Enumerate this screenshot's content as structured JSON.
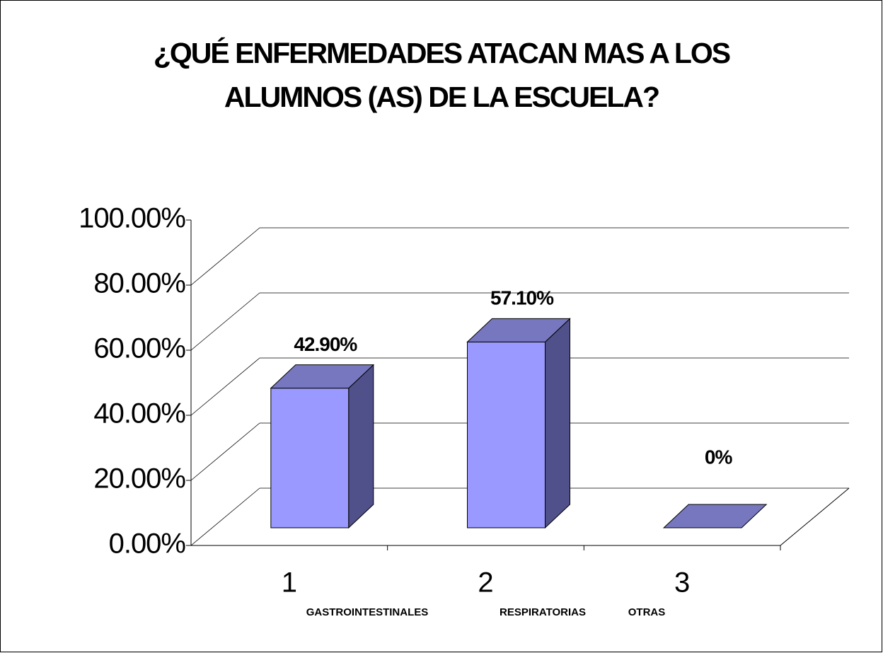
{
  "chart_data": {
    "type": "bar3d",
    "title": [
      "¿QUÉ ENFERMEDADES ATACAN MAS A LOS",
      "ALUMNOS (AS) DE LA ESCUELA?"
    ],
    "categories": [
      "1",
      "2",
      "3"
    ],
    "category_descriptions": [
      "GASTROINTESTINALES",
      "RESPIRATORIAS",
      "OTRAS"
    ],
    "values": [
      42.9,
      57.1,
      0
    ],
    "value_labels": [
      "42.90%",
      "57.10%",
      "0%"
    ],
    "color": "#9999ff",
    "ylim": [
      0,
      100
    ],
    "yticks": [
      {
        "value": 0,
        "label": "0.00%"
      },
      {
        "value": 20,
        "label": "20.00%"
      },
      {
        "value": 40,
        "label": "40.00%"
      },
      {
        "value": 60,
        "label": "60.00%"
      },
      {
        "value": 80,
        "label": "80.00%"
      },
      {
        "value": 100,
        "label": "100.00%"
      }
    ],
    "grid": true
  }
}
